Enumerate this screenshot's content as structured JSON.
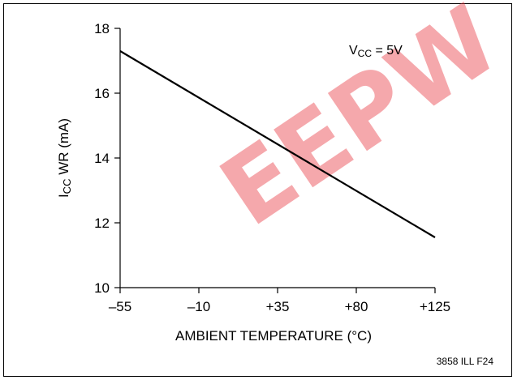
{
  "chart_data": {
    "type": "line",
    "xlabel": "AMBIENT TEMPERATURE (°C)",
    "ylabel": {
      "main": "I",
      "sub": "CC",
      "rest": " WR (mA)"
    },
    "x_ticks": [
      "–55",
      "–10",
      "+35",
      "+80",
      "+125"
    ],
    "x_tick_values": [
      -55,
      -10,
      35,
      80,
      125
    ],
    "y_ticks": [
      "10",
      "12",
      "14",
      "16",
      "18"
    ],
    "y_tick_values": [
      10,
      12,
      14,
      16,
      18
    ],
    "xlim": [
      -55,
      125
    ],
    "ylim": [
      10,
      18
    ],
    "grid": false,
    "series": [
      {
        "x": [
          -55,
          125
        ],
        "y": [
          17.3,
          11.55
        ],
        "color": "#000000"
      }
    ],
    "annotation": {
      "main": "V",
      "sub": "CC",
      "rest": " = 5V"
    }
  },
  "watermark": {
    "text": "EEPW",
    "color": "#e8323c"
  },
  "figure_id": "3858 ILL F24"
}
